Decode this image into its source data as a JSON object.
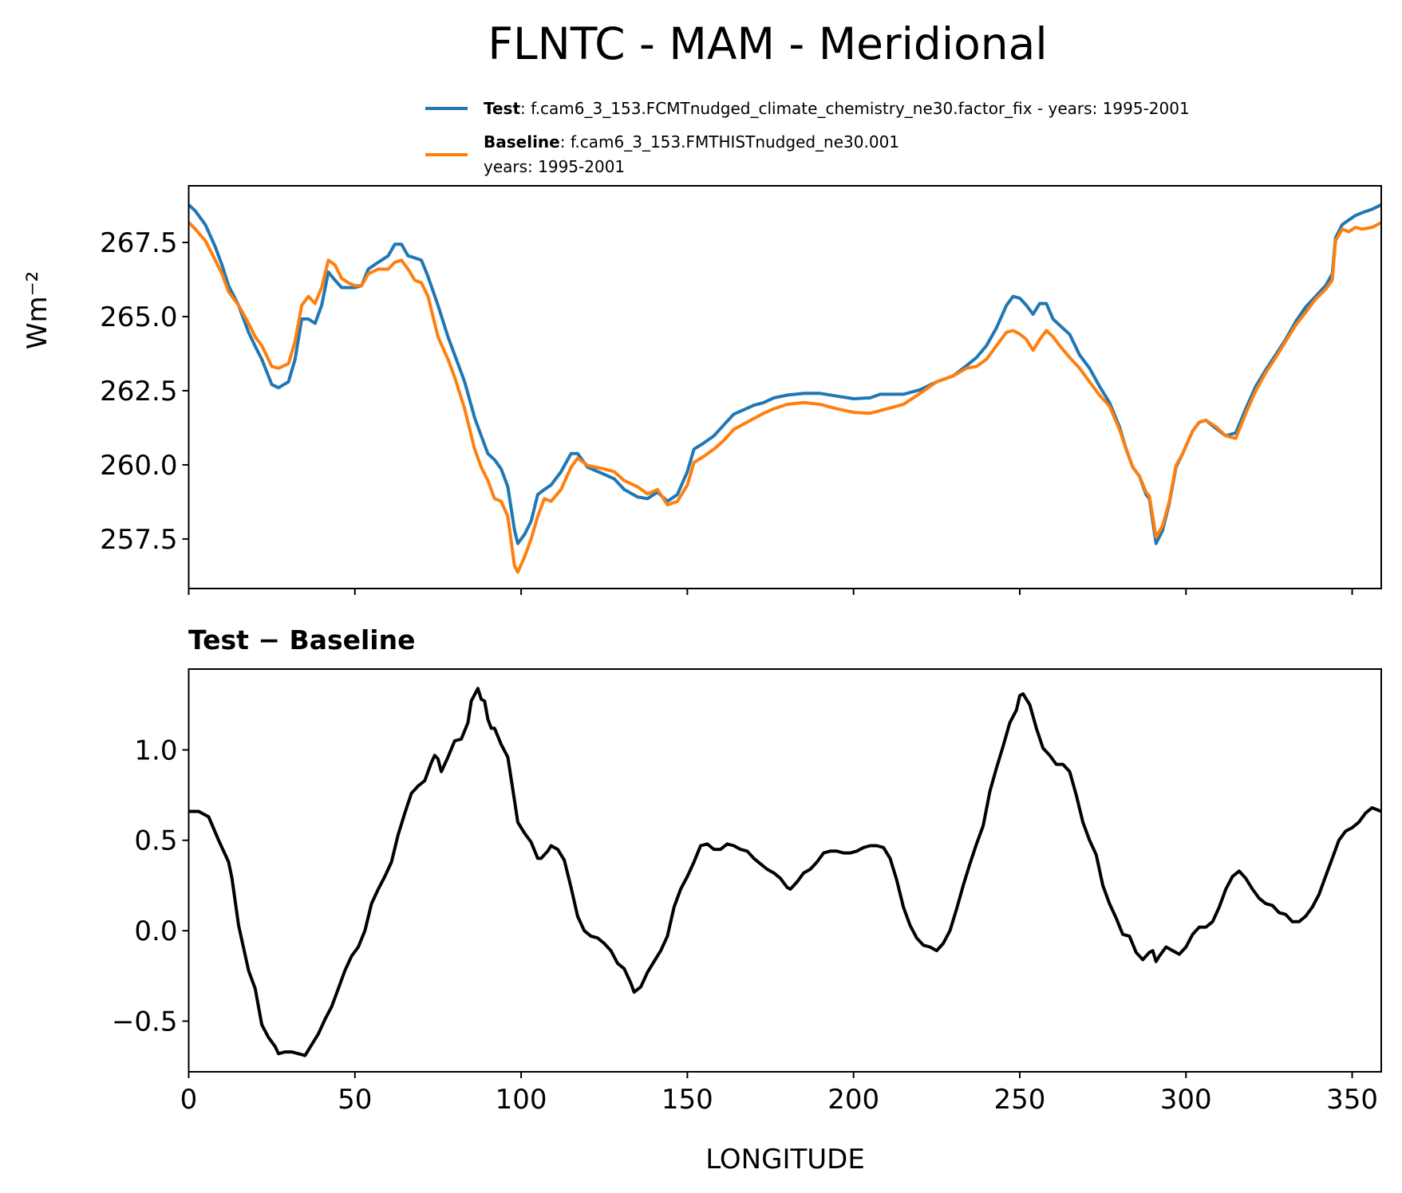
{
  "chart_data": [
    {
      "type": "line",
      "title": "FLNTC - MAM - Meridional",
      "xlabel": "",
      "ylabel": "Wm⁻²",
      "xlim": [
        0,
        358.75
      ],
      "ylim": [
        255.83,
        269.41
      ],
      "yticks": [
        257.5,
        260.0,
        262.5,
        265.0,
        267.5
      ],
      "ytick_labels": [
        "257.5",
        "260.0",
        "262.5",
        "265.0",
        "267.5"
      ],
      "xticks": [
        0,
        50,
        100,
        150,
        200,
        250,
        300,
        350
      ],
      "grid": false,
      "legend": {
        "placement": "above-top-right",
        "entries": [
          {
            "bold": "Test",
            "text": ": f.cam6_3_153.FCMTnudged_climate_chemistry_ne30.factor_fix - years: 1995-2001",
            "text2": ""
          },
          {
            "bold": "Baseline",
            "text": ": f.cam6_3_153.FMTHISTnudged_ne30.001",
            "text2": "years: 1995-2001"
          }
        ]
      },
      "series": [
        {
          "name": "Test",
          "color": "#1f77b4",
          "x": [
            0,
            2,
            5,
            8,
            10,
            12,
            15,
            18,
            20,
            22,
            25,
            27,
            30,
            32,
            34,
            36,
            38,
            40,
            42,
            44,
            46,
            50,
            52,
            54,
            57,
            60,
            62,
            64,
            66,
            68,
            70,
            72,
            75,
            78,
            80,
            83,
            86,
            88,
            90,
            92,
            94,
            96,
            98,
            99,
            101,
            103,
            105,
            107,
            109,
            112,
            115,
            117,
            120,
            125,
            128,
            131,
            135,
            138,
            141,
            144,
            147,
            150,
            152,
            155,
            158,
            161,
            164,
            167,
            170,
            173,
            176,
            180,
            185,
            190,
            195,
            200,
            205,
            208,
            215,
            220,
            225,
            230,
            234,
            237,
            240,
            243,
            246,
            248,
            250,
            252,
            254,
            256,
            258,
            260,
            262,
            265,
            268,
            271,
            274,
            277,
            280,
            282,
            284,
            286,
            288,
            289,
            291,
            293,
            295,
            297,
            299,
            302,
            304,
            306,
            309,
            312,
            315,
            318,
            321,
            324,
            327,
            330,
            333,
            336,
            339,
            342,
            344,
            345,
            347,
            349,
            351,
            353,
            356,
            358.75
          ],
          "y": [
            268.77,
            268.56,
            268.1,
            267.35,
            266.74,
            266.04,
            265.38,
            264.47,
            264.0,
            263.56,
            262.71,
            262.6,
            262.8,
            263.56,
            264.92,
            264.92,
            264.77,
            265.38,
            266.5,
            266.23,
            265.98,
            265.98,
            266.04,
            266.6,
            266.83,
            267.05,
            267.44,
            267.44,
            267.05,
            266.98,
            266.9,
            266.35,
            265.38,
            264.32,
            263.71,
            262.8,
            261.59,
            260.98,
            260.38,
            260.17,
            259.86,
            259.26,
            257.8,
            257.35,
            257.65,
            258.1,
            259.0,
            259.17,
            259.32,
            259.77,
            260.38,
            260.38,
            259.92,
            259.68,
            259.53,
            259.17,
            258.92,
            258.86,
            259.08,
            258.77,
            259.0,
            259.77,
            260.53,
            260.74,
            260.98,
            261.35,
            261.71,
            261.86,
            262.01,
            262.1,
            262.26,
            262.35,
            262.41,
            262.41,
            262.32,
            262.23,
            262.26,
            262.38,
            262.38,
            262.53,
            262.8,
            263.0,
            263.35,
            263.62,
            264.02,
            264.62,
            265.38,
            265.68,
            265.62,
            265.38,
            265.08,
            265.44,
            265.44,
            264.92,
            264.71,
            264.4,
            263.71,
            263.26,
            262.65,
            262.1,
            261.29,
            260.53,
            259.92,
            259.62,
            259.0,
            258.86,
            257.35,
            257.8,
            258.71,
            259.92,
            260.38,
            261.14,
            261.44,
            261.5,
            261.23,
            260.98,
            261.08,
            261.89,
            262.65,
            263.2,
            263.71,
            264.23,
            264.83,
            265.32,
            265.68,
            266.04,
            266.44,
            267.65,
            268.1,
            268.26,
            268.41,
            268.5,
            268.62,
            268.77
          ]
        },
        {
          "name": "Baseline",
          "color": "#ff7f0e",
          "x": [
            0,
            2,
            5,
            8,
            10,
            12,
            15,
            18,
            20,
            22,
            25,
            27,
            30,
            32,
            34,
            36,
            38,
            40,
            42,
            44,
            46,
            48,
            50,
            52,
            54,
            57,
            60,
            62,
            64,
            66,
            68,
            70,
            72,
            75,
            78,
            80,
            83,
            86,
            88,
            90,
            92,
            94,
            96,
            98,
            99,
            101,
            103,
            105,
            107,
            109,
            112,
            115,
            117,
            120,
            125,
            128,
            131,
            135,
            138,
            141,
            144,
            147,
            150,
            152,
            155,
            158,
            161,
            164,
            167,
            170,
            173,
            176,
            180,
            185,
            190,
            195,
            200,
            205,
            208,
            215,
            220,
            225,
            230,
            234,
            237,
            240,
            243,
            246,
            248,
            250,
            252,
            254,
            256,
            258,
            260,
            262,
            265,
            268,
            271,
            274,
            277,
            280,
            282,
            284,
            286,
            288,
            289,
            291,
            293,
            295,
            297,
            299,
            302,
            304,
            306,
            309,
            312,
            315,
            318,
            321,
            324,
            327,
            330,
            333,
            336,
            339,
            342,
            344,
            345,
            347,
            349,
            351,
            353,
            356,
            358.75
          ],
          "y": [
            268.17,
            267.95,
            267.56,
            266.9,
            266.44,
            265.83,
            265.38,
            264.77,
            264.32,
            264.02,
            263.32,
            263.26,
            263.41,
            264.17,
            265.38,
            265.68,
            265.44,
            265.98,
            266.9,
            266.74,
            266.29,
            266.14,
            266.04,
            266.04,
            266.44,
            266.6,
            266.6,
            266.83,
            266.9,
            266.6,
            266.23,
            266.14,
            265.68,
            264.32,
            263.56,
            262.95,
            261.89,
            260.53,
            259.92,
            259.47,
            258.86,
            258.77,
            258.26,
            256.59,
            256.38,
            256.89,
            257.5,
            258.26,
            258.86,
            258.77,
            259.17,
            259.92,
            260.23,
            259.98,
            259.86,
            259.77,
            259.47,
            259.26,
            259.02,
            259.17,
            258.65,
            258.77,
            259.32,
            260.08,
            260.29,
            260.53,
            260.83,
            261.2,
            261.38,
            261.56,
            261.74,
            261.89,
            262.04,
            262.1,
            262.04,
            261.89,
            261.77,
            261.74,
            261.83,
            262.04,
            262.41,
            262.8,
            263.0,
            263.26,
            263.32,
            263.56,
            264.02,
            264.47,
            264.53,
            264.41,
            264.23,
            263.86,
            264.23,
            264.53,
            264.32,
            264.02,
            263.62,
            263.26,
            262.8,
            262.35,
            261.98,
            261.2,
            260.53,
            259.92,
            259.62,
            259.08,
            258.95,
            257.56,
            257.95,
            258.77,
            259.98,
            260.38,
            261.14,
            261.44,
            261.5,
            261.29,
            260.98,
            260.89,
            261.74,
            262.5,
            263.11,
            263.62,
            264.17,
            264.71,
            265.14,
            265.59,
            265.92,
            266.23,
            267.56,
            267.95,
            267.86,
            268.01,
            267.95,
            268.01,
            268.17
          ]
        }
      ]
    },
    {
      "type": "line",
      "title": "Test − Baseline",
      "xlabel": "LONGITUDE",
      "ylabel": "",
      "xlim": [
        0,
        358.75
      ],
      "ylim": [
        -0.78,
        1.447
      ],
      "yticks": [
        -0.5,
        0.0,
        0.5,
        1.0
      ],
      "ytick_labels": [
        "−0.5",
        "0.0",
        "0.5",
        "1.0"
      ],
      "xticks": [
        0,
        50,
        100,
        150,
        200,
        250,
        300,
        350
      ],
      "xtick_labels": [
        "0",
        "50",
        "100",
        "150",
        "200",
        "250",
        "300",
        "350"
      ],
      "grid": false,
      "series": [
        {
          "name": "Test - Baseline",
          "color": "#000000",
          "x": [
            0,
            3,
            6,
            9,
            12,
            13,
            15,
            18,
            20,
            22,
            24,
            26,
            27,
            29,
            31,
            33,
            35,
            37,
            39,
            41,
            43,
            45,
            47,
            49,
            51,
            53,
            55,
            57,
            59,
            61,
            63,
            65,
            67,
            69,
            71,
            73,
            74,
            75,
            76,
            78,
            80,
            82,
            84,
            85,
            87,
            88,
            89,
            90,
            91,
            92,
            94,
            96,
            98,
            99,
            101,
            103,
            105,
            106,
            108,
            109,
            111,
            113,
            115,
            117,
            119,
            121,
            123,
            125,
            127,
            129,
            131,
            133,
            134,
            136,
            138,
            140,
            142,
            144,
            146,
            148,
            150,
            152,
            154,
            156,
            158,
            160,
            162,
            164,
            166,
            168,
            170,
            172,
            174,
            176,
            178,
            180,
            181,
            183,
            185,
            187,
            189,
            191,
            193,
            195,
            197,
            199,
            201,
            203,
            205,
            207,
            209,
            211,
            213,
            215,
            217,
            219,
            221,
            223,
            225,
            227,
            229,
            231,
            233,
            235,
            237,
            239,
            241,
            243,
            245,
            247,
            249,
            250,
            251,
            253,
            255,
            257,
            259,
            261,
            263,
            265,
            267,
            269,
            271,
            273,
            275,
            277,
            279,
            281,
            283,
            285,
            287,
            289,
            290,
            291,
            292,
            294,
            296,
            298,
            300,
            302,
            304,
            306,
            308,
            310,
            312,
            314,
            316,
            318,
            320,
            322,
            324,
            326,
            328,
            330,
            332,
            334,
            336,
            338,
            340,
            342,
            344,
            346,
            348,
            350,
            352,
            354,
            356,
            358.75
          ],
          "y": [
            0.66,
            0.66,
            0.63,
            0.5,
            0.38,
            0.29,
            0.03,
            -0.22,
            -0.32,
            -0.52,
            -0.59,
            -0.64,
            -0.68,
            -0.67,
            -0.67,
            -0.68,
            -0.69,
            -0.63,
            -0.57,
            -0.49,
            -0.42,
            -0.32,
            -0.22,
            -0.14,
            -0.09,
            0.0,
            0.15,
            0.23,
            0.3,
            0.38,
            0.53,
            0.65,
            0.76,
            0.8,
            0.83,
            0.93,
            0.97,
            0.95,
            0.88,
            0.96,
            1.05,
            1.06,
            1.15,
            1.27,
            1.34,
            1.28,
            1.27,
            1.17,
            1.12,
            1.12,
            1.03,
            0.96,
            0.72,
            0.6,
            0.54,
            0.49,
            0.4,
            0.4,
            0.44,
            0.47,
            0.45,
            0.39,
            0.24,
            0.08,
            0.0,
            -0.03,
            -0.04,
            -0.07,
            -0.11,
            -0.18,
            -0.21,
            -0.29,
            -0.34,
            -0.31,
            -0.23,
            -0.17,
            -0.11,
            -0.03,
            0.13,
            0.23,
            0.3,
            0.38,
            0.47,
            0.48,
            0.45,
            0.45,
            0.48,
            0.47,
            0.45,
            0.44,
            0.4,
            0.37,
            0.34,
            0.32,
            0.29,
            0.24,
            0.23,
            0.27,
            0.32,
            0.34,
            0.38,
            0.43,
            0.44,
            0.44,
            0.43,
            0.43,
            0.44,
            0.46,
            0.47,
            0.47,
            0.46,
            0.4,
            0.28,
            0.13,
            0.03,
            -0.04,
            -0.08,
            -0.09,
            -0.11,
            -0.07,
            0.0,
            0.12,
            0.25,
            0.37,
            0.48,
            0.58,
            0.77,
            0.9,
            1.02,
            1.15,
            1.22,
            1.3,
            1.31,
            1.25,
            1.12,
            1.01,
            0.97,
            0.92,
            0.92,
            0.88,
            0.75,
            0.6,
            0.5,
            0.42,
            0.25,
            0.15,
            0.07,
            -0.02,
            -0.03,
            -0.12,
            -0.16,
            -0.12,
            -0.11,
            -0.17,
            -0.14,
            -0.09,
            -0.11,
            -0.13,
            -0.09,
            -0.02,
            0.02,
            0.02,
            0.05,
            0.13,
            0.23,
            0.3,
            0.33,
            0.29,
            0.23,
            0.18,
            0.15,
            0.14,
            0.1,
            0.09,
            0.05,
            0.05,
            0.08,
            0.13,
            0.2,
            0.3,
            0.4,
            0.5,
            0.55,
            0.57,
            0.6,
            0.65,
            0.68,
            0.66
          ]
        }
      ]
    }
  ]
}
